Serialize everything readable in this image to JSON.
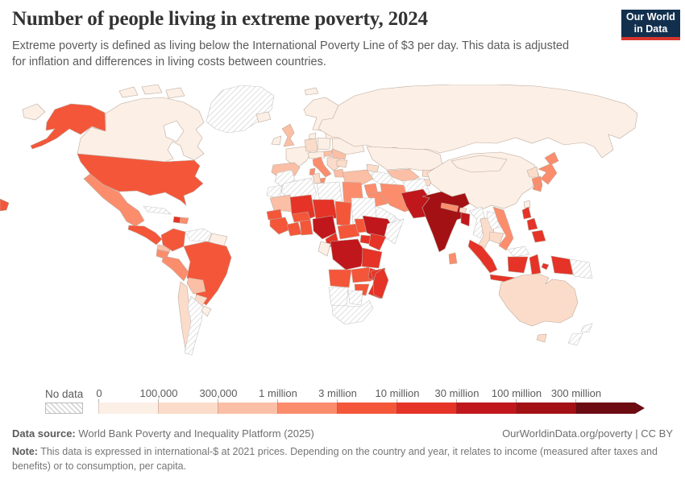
{
  "header": {
    "title": "Number of people living in extreme poverty, 2024",
    "subtitle": "Extreme poverty is defined as living below the International Poverty Line of $3 per day. This data is adjusted for inflation and differences in living costs between countries.",
    "logo_line1": "Our World",
    "logo_line2": "in Data"
  },
  "legend": {
    "no_data_label": "No data",
    "arrow_color": "#6c0b12"
  },
  "footer": {
    "datasource_label": "Data source:",
    "datasource_text": " World Bank Poverty and Inequality Platform (2025)",
    "link_text": "OurWorldinData.org/poverty | CC BY",
    "note_label": "Note:",
    "note_text": " This data is expressed in international-$ at 2021 prices. Depending on the country and year, it relates to income (measured after taxes and benefits) or to consumption, per capita."
  },
  "chart_data": {
    "type": "choropleth",
    "title": "Number of people living in extreme poverty",
    "year": "2024",
    "unit": "people",
    "no_data_style": "hatched",
    "bins": [
      {
        "label": "0",
        "color": "#fcefe6"
      },
      {
        "label": "100,000",
        "color": "#fbdcca"
      },
      {
        "label": "300,000",
        "color": "#fbbfa6"
      },
      {
        "label": "1 million",
        "color": "#fb8d6d"
      },
      {
        "label": "3 million",
        "color": "#f4563a"
      },
      {
        "label": "10 million",
        "color": "#e53327"
      },
      {
        "label": "30 million",
        "color": "#c0171c"
      },
      {
        "label": "100 million",
        "color": "#a31115"
      },
      {
        "label": "300 million",
        "color": "#6c0b12"
      }
    ],
    "countries": [
      {
        "id": "chukotka",
        "bin": 1
      },
      {
        "id": "alaska",
        "bin": 5
      },
      {
        "id": "canada",
        "bin": 1
      },
      {
        "id": "arctic-island-1",
        "bin": 1
      },
      {
        "id": "arctic-island-2",
        "bin": 1
      },
      {
        "id": "arctic-island-3",
        "bin": 1
      },
      {
        "id": "greenland",
        "bin": 0
      },
      {
        "id": "svalbard",
        "bin": 1
      },
      {
        "id": "iceland",
        "bin": 1
      },
      {
        "id": "usa",
        "bin": 5
      },
      {
        "id": "usa-sliver",
        "bin": 5
      },
      {
        "id": "mexico",
        "bin": 4
      },
      {
        "id": "guatemala-honduras",
        "bin": 5
      },
      {
        "id": "costarica-panama",
        "bin": 3
      },
      {
        "id": "cuba",
        "bin": 0
      },
      {
        "id": "haiti",
        "bin": 6
      },
      {
        "id": "dominican-republic",
        "bin": 4
      },
      {
        "id": "colombia",
        "bin": 5
      },
      {
        "id": "venezuela",
        "bin": 0
      },
      {
        "id": "guyanas",
        "bin": 1
      },
      {
        "id": "ecuador",
        "bin": 4
      },
      {
        "id": "peru",
        "bin": 4
      },
      {
        "id": "brazil",
        "bin": 5
      },
      {
        "id": "bolivia",
        "bin": 3
      },
      {
        "id": "paraguay",
        "bin": 2
      },
      {
        "id": "chile",
        "bin": 2
      },
      {
        "id": "argentina",
        "bin": 0
      },
      {
        "id": "uruguay",
        "bin": 1
      },
      {
        "id": "scandinavia",
        "bin": 1
      },
      {
        "id": "denmark",
        "bin": 1
      },
      {
        "id": "uk",
        "bin": 3
      },
      {
        "id": "ireland",
        "bin": 1
      },
      {
        "id": "france",
        "bin": 1
      },
      {
        "id": "germany",
        "bin": 2
      },
      {
        "id": "poland",
        "bin": 1
      },
      {
        "id": "czech-austria",
        "bin": 1
      },
      {
        "id": "italy",
        "bin": 4
      },
      {
        "id": "sicily",
        "bin": 4
      },
      {
        "id": "sardinia",
        "bin": 4
      },
      {
        "id": "iberia",
        "bin": 3
      },
      {
        "id": "balkans",
        "bin": 2
      },
      {
        "id": "greece",
        "bin": 3
      },
      {
        "id": "romania",
        "bin": 3
      },
      {
        "id": "hungary",
        "bin": 3
      },
      {
        "id": "bulgaria",
        "bin": 2
      },
      {
        "id": "ukraine",
        "bin": 1
      },
      {
        "id": "belarus-baltics",
        "bin": 1
      },
      {
        "id": "russia",
        "bin": 1
      },
      {
        "id": "kazakhstan",
        "bin": 1
      },
      {
        "id": "uzbekistan",
        "bin": 3
      },
      {
        "id": "turkmenistan",
        "bin": 0
      },
      {
        "id": "kyrgyzstan",
        "bin": 2
      },
      {
        "id": "tajikistan",
        "bin": 2
      },
      {
        "id": "turkey",
        "bin": 3
      },
      {
        "id": "caucasus",
        "bin": 2
      },
      {
        "id": "syria",
        "bin": 4
      },
      {
        "id": "iraq",
        "bin": 4
      },
      {
        "id": "iran",
        "bin": 4
      },
      {
        "id": "afghanistan",
        "bin": 0
      },
      {
        "id": "saudi-arabia",
        "bin": 0
      },
      {
        "id": "yemen",
        "bin": 0
      },
      {
        "id": "oman",
        "bin": 0
      },
      {
        "id": "morocco",
        "bin": 0
      },
      {
        "id": "western-sahara",
        "bin": 0
      },
      {
        "id": "algeria",
        "bin": 0
      },
      {
        "id": "tunisia",
        "bin": 2
      },
      {
        "id": "libya",
        "bin": 0
      },
      {
        "id": "egypt",
        "bin": 4
      },
      {
        "id": "mauritania",
        "bin": 3
      },
      {
        "id": "mali",
        "bin": 6
      },
      {
        "id": "niger",
        "bin": 6
      },
      {
        "id": "chad",
        "bin": 5
      },
      {
        "id": "sudan",
        "bin": 0
      },
      {
        "id": "senegal",
        "bin": 5
      },
      {
        "id": "guinea-group",
        "bin": 5
      },
      {
        "id": "cote-divoire",
        "bin": 5
      },
      {
        "id": "ghana-togo-benin",
        "bin": 5
      },
      {
        "id": "burkina-faso",
        "bin": 5
      },
      {
        "id": "nigeria",
        "bin": 7
      },
      {
        "id": "cameroon",
        "bin": 6
      },
      {
        "id": "central-african-republic",
        "bin": 5
      },
      {
        "id": "south-sudan",
        "bin": 5
      },
      {
        "id": "eritrea",
        "bin": 5
      },
      {
        "id": "ethiopia",
        "bin": 7
      },
      {
        "id": "somalia",
        "bin": 0
      },
      {
        "id": "uganda",
        "bin": 6
      },
      {
        "id": "kenya",
        "bin": 6
      },
      {
        "id": "gabon-congo",
        "bin": 1
      },
      {
        "id": "drc",
        "bin": 7
      },
      {
        "id": "tanzania",
        "bin": 6
      },
      {
        "id": "angola",
        "bin": 5
      },
      {
        "id": "zambia",
        "bin": 5
      },
      {
        "id": "malawi",
        "bin": 6
      },
      {
        "id": "mozambique",
        "bin": 6
      },
      {
        "id": "zimbabwe",
        "bin": 5
      },
      {
        "id": "namibia",
        "bin": 0
      },
      {
        "id": "botswana",
        "bin": 0
      },
      {
        "id": "south-africa",
        "bin": 0
      },
      {
        "id": "madagascar",
        "bin": 6
      },
      {
        "id": "pakistan",
        "bin": 7
      },
      {
        "id": "india",
        "bin": 8
      },
      {
        "id": "nepal",
        "bin": 4
      },
      {
        "id": "bhutan",
        "bin": 2
      },
      {
        "id": "bangladesh",
        "bin": 7
      },
      {
        "id": "sri-lanka",
        "bin": 4
      },
      {
        "id": "china",
        "bin": 1
      },
      {
        "id": "mongolia",
        "bin": 1
      },
      {
        "id": "north-korea",
        "bin": 2
      },
      {
        "id": "south-korea",
        "bin": 4
      },
      {
        "id": "japan-hokkaido",
        "bin": 4
      },
      {
        "id": "japan-honshu",
        "bin": 4
      },
      {
        "id": "japan-kyushu",
        "bin": 4
      },
      {
        "id": "taiwan",
        "bin": 1
      },
      {
        "id": "myanmar",
        "bin": 0
      },
      {
        "id": "thailand",
        "bin": 2
      },
      {
        "id": "laos",
        "bin": 0
      },
      {
        "id": "cambodia",
        "bin": 2
      },
      {
        "id": "vietnam",
        "bin": 4
      },
      {
        "id": "malaysia-peninsula",
        "bin": 0
      },
      {
        "id": "malaysia-borneo",
        "bin": 0
      },
      {
        "id": "philippines-luzon",
        "bin": 6
      },
      {
        "id": "philippines-visayas",
        "bin": 6
      },
      {
        "id": "philippines-mindanao",
        "bin": 6
      },
      {
        "id": "sumatra",
        "bin": 6
      },
      {
        "id": "java",
        "bin": 6
      },
      {
        "id": "kalimantan",
        "bin": 6
      },
      {
        "id": "sulawesi",
        "bin": 6
      },
      {
        "id": "lesser-sunda",
        "bin": 6
      },
      {
        "id": "maluku",
        "bin": 6
      },
      {
        "id": "west-papua",
        "bin": 6
      },
      {
        "id": "papua-new-guinea",
        "bin": 0
      },
      {
        "id": "australia",
        "bin": 2
      },
      {
        "id": "tasmania",
        "bin": 2
      },
      {
        "id": "new-zealand-north",
        "bin": 0
      },
      {
        "id": "new-zealand-south",
        "bin": 0
      }
    ]
  }
}
